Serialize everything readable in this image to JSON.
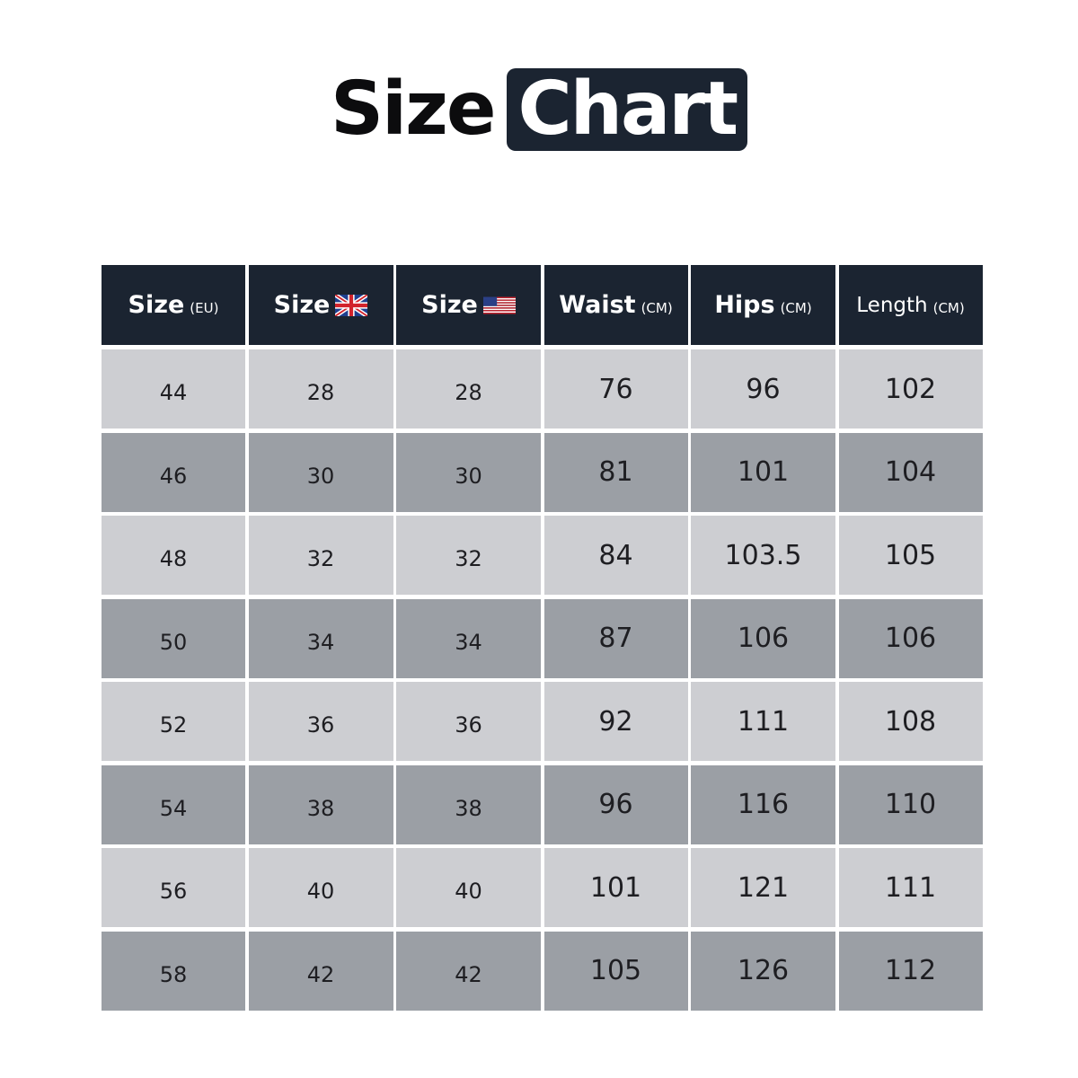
{
  "title": {
    "part1": "Size",
    "part2": "Chart"
  },
  "colors": {
    "header_bg": "#1b2431",
    "row_light": "#cdced2",
    "row_dark": "#9b9fa5"
  },
  "headers": [
    {
      "label": "Size",
      "unit": "(EU)",
      "icon": ""
    },
    {
      "label": "Size",
      "unit": "",
      "icon": "uk-flag-icon"
    },
    {
      "label": "Size",
      "unit": "",
      "icon": "us-flag-icon"
    },
    {
      "label": "Waist",
      "unit": "(CM)",
      "icon": ""
    },
    {
      "label": "Hips",
      "unit": "(CM)",
      "icon": ""
    },
    {
      "label": "Length",
      "unit": "(CM)",
      "icon": ""
    }
  ],
  "rows": [
    [
      "44",
      "28",
      "28",
      "76",
      "96",
      "102"
    ],
    [
      "46",
      "30",
      "30",
      "81",
      "101",
      "104"
    ],
    [
      "48",
      "32",
      "32",
      "84",
      "103.5",
      "105"
    ],
    [
      "50",
      "34",
      "34",
      "87",
      "106",
      "106"
    ],
    [
      "52",
      "36",
      "36",
      "92",
      "111",
      "108"
    ],
    [
      "54",
      "38",
      "38",
      "96",
      "116",
      "110"
    ],
    [
      "56",
      "40",
      "40",
      "101",
      "121",
      "111"
    ],
    [
      "58",
      "42",
      "42",
      "105",
      "126",
      "112"
    ]
  ]
}
